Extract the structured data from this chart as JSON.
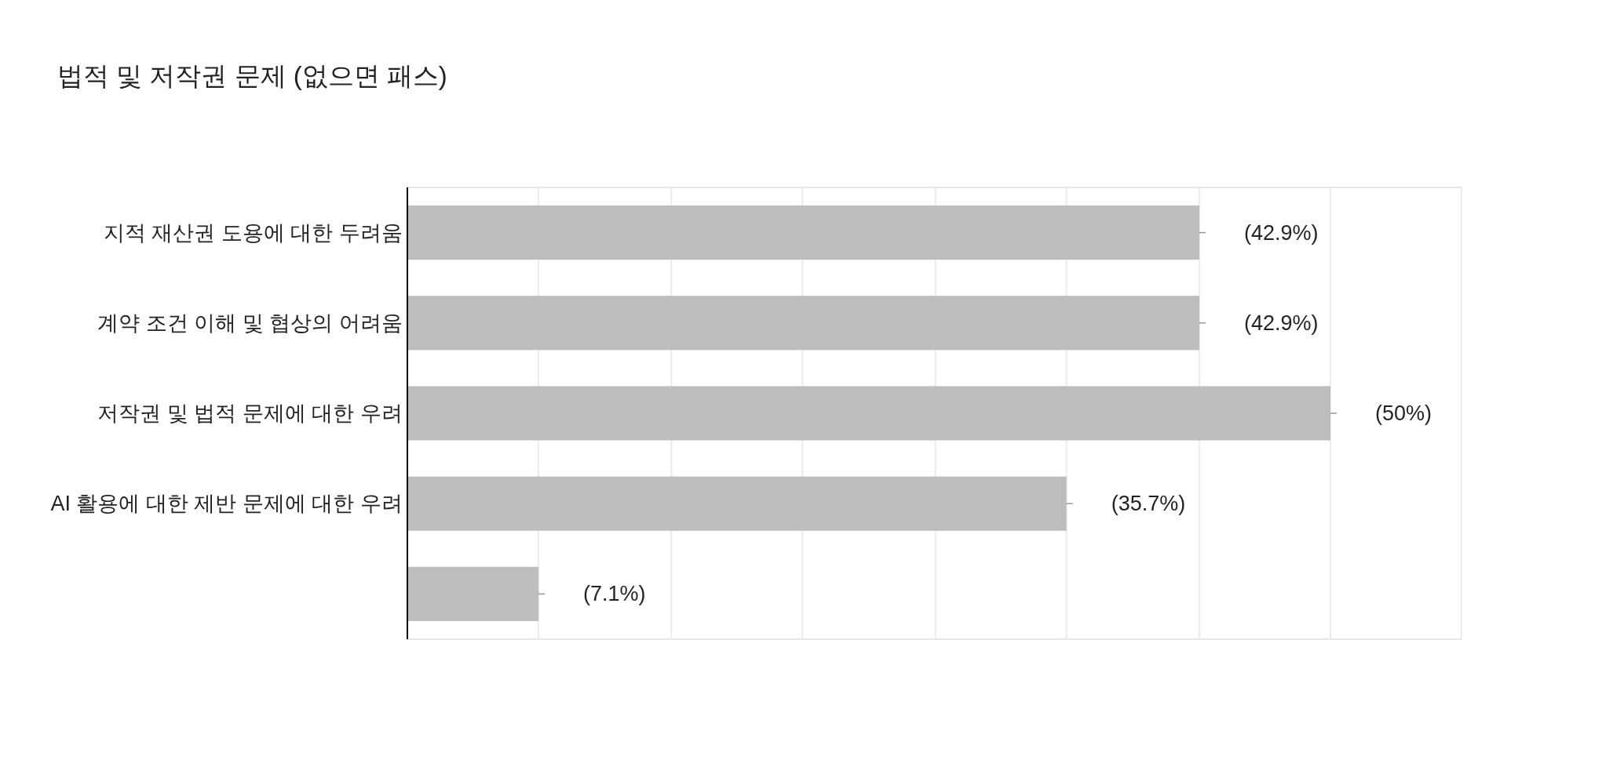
{
  "chart_data": {
    "type": "bar",
    "orientation": "horizontal",
    "title": "법적 및 저작권 문제 (없으면 패스)",
    "categories": [
      "지적 재산권 도용에 대한 두려움",
      "계약 조건 이해 및 협상의 어려움",
      "저작권 및 법적 문제에 대한 우려",
      "AI 활용에 대한 제반 문제에 대한 우려",
      null
    ],
    "values": [
      42.9,
      42.9,
      50,
      35.7,
      7.1
    ],
    "value_labels": [
      "(42.9%)",
      "(42.9%)",
      "(50%)",
      "(35.7%)",
      "(7.1%)"
    ],
    "color": "#bdbdbd",
    "xlim": [
      0,
      57.1
    ],
    "xticks": [
      {
        "value": 0,
        "label": null
      },
      {
        "value": 7.1,
        "label": null
      },
      {
        "value": 14.3,
        "label": null
      },
      {
        "value": 21.4,
        "label": null
      },
      {
        "value": 28.6,
        "label": null
      },
      {
        "value": 35.7,
        "label": null
      },
      {
        "value": 42.9,
        "label": null
      },
      {
        "value": 50,
        "label": null
      },
      {
        "value": 57.1,
        "label": null
      }
    ],
    "grid": "x"
  }
}
